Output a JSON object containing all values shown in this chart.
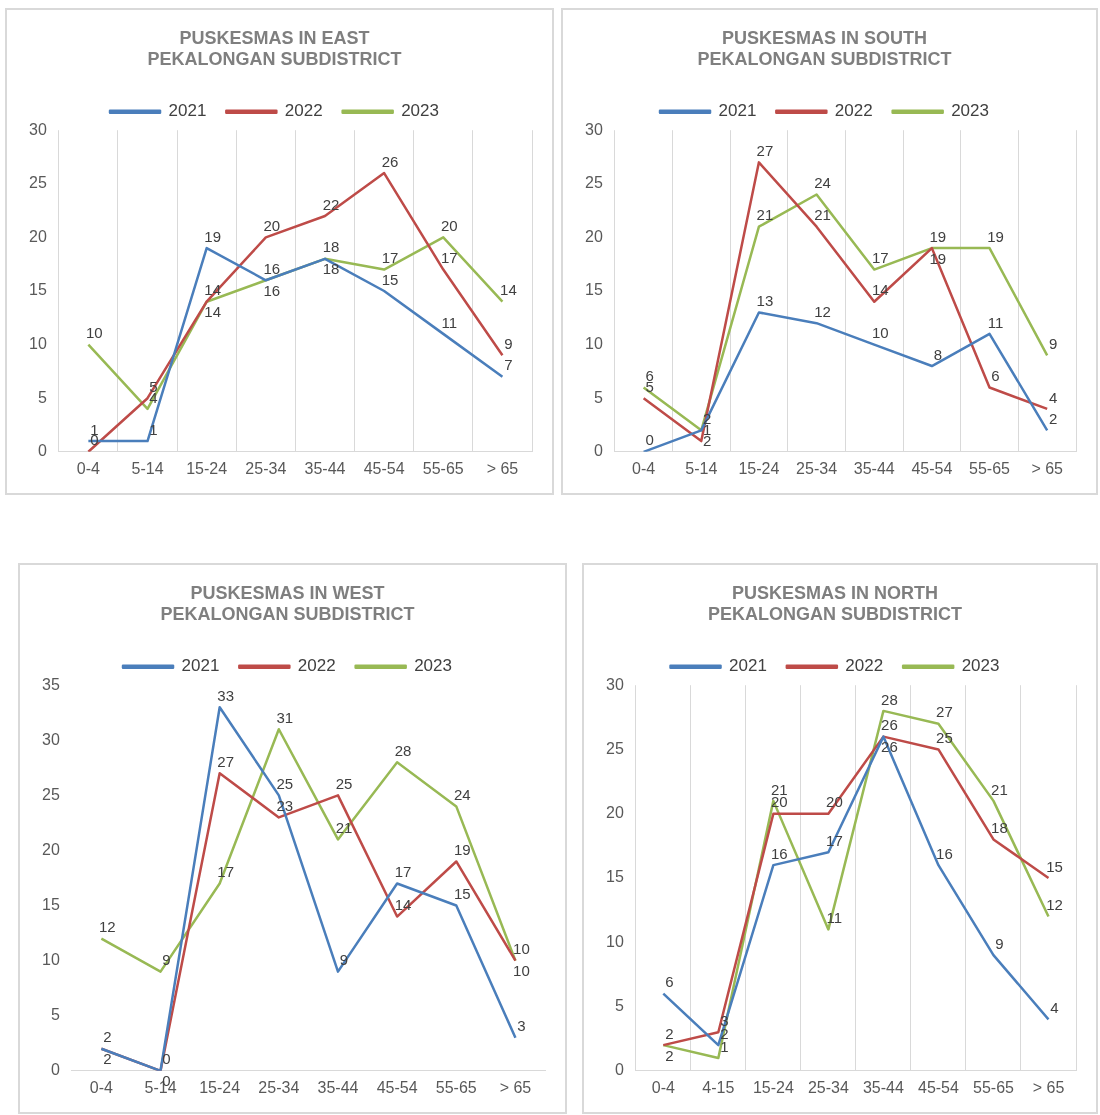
{
  "chart_data": [
    {
      "type": "line",
      "title": "PUSKESMAS IN EAST PEKALONGAN SUBDISTRICT",
      "categories": [
        "0-4",
        "5-14",
        "15-24",
        "25-34",
        "35-44",
        "45-54",
        "55-65",
        "> 65"
      ],
      "series": [
        {
          "name": "2021",
          "color": "#4a7ebb",
          "values": [
            1,
            1,
            19,
            16,
            18,
            15,
            11,
            7
          ]
        },
        {
          "name": "2022",
          "color": "#be4b48",
          "values": [
            0,
            5,
            14,
            20,
            22,
            26,
            17,
            9
          ]
        },
        {
          "name": "2023",
          "color": "#98b954",
          "values": [
            10,
            4,
            14,
            16,
            18,
            17,
            20,
            14
          ]
        }
      ],
      "ylim": [
        0,
        30
      ],
      "yticks": [
        0,
        5,
        10,
        15,
        20,
        25,
        30
      ],
      "grid": "x",
      "legend": "top",
      "data_labels": true,
      "marker": "none"
    },
    {
      "type": "line",
      "title": "PUSKESMAS IN SOUTH PEKALONGAN SUBDISTRICT",
      "categories": [
        "0-4",
        "5-14",
        "15-24",
        "25-34",
        "35-44",
        "45-54",
        "55-65",
        "> 65"
      ],
      "series": [
        {
          "name": "2021",
          "color": "#4a7ebb",
          "values": [
            0,
            2,
            13,
            12,
            10,
            8,
            11,
            2
          ]
        },
        {
          "name": "2022",
          "color": "#be4b48",
          "values": [
            5,
            1,
            27,
            21,
            14,
            19,
            6,
            4
          ]
        },
        {
          "name": "2023",
          "color": "#98b954",
          "values": [
            6,
            2,
            21,
            24,
            17,
            19,
            19,
            9
          ]
        }
      ],
      "ylim": [
        0,
        30
      ],
      "yticks": [
        0,
        5,
        10,
        15,
        20,
        25,
        30
      ],
      "grid": "x",
      "legend": "top",
      "data_labels": true,
      "marker": "none"
    },
    {
      "type": "line",
      "title": "PUSKESMAS IN WEST PEKALONGAN SUBDISTRICT",
      "categories": [
        "0-4",
        "5-14",
        "15-24",
        "25-34",
        "35-44",
        "45-54",
        "55-65",
        "> 65"
      ],
      "series": [
        {
          "name": "2021",
          "color": "#4a7ebb",
          "values": [
            2,
            0,
            33,
            25,
            9,
            17,
            15,
            3
          ]
        },
        {
          "name": "2022",
          "color": "#be4b48",
          "values": [
            2,
            0,
            27,
            23,
            25,
            14,
            19,
            10
          ]
        },
        {
          "name": "2023",
          "color": "#98b954",
          "values": [
            12,
            9,
            17,
            31,
            21,
            28,
            24,
            10
          ]
        }
      ],
      "ylim": [
        0,
        35
      ],
      "yticks": [
        0,
        5,
        10,
        15,
        20,
        25,
        30,
        35
      ],
      "legend": "top",
      "data_labels": true,
      "marker": "none"
    },
    {
      "type": "line",
      "title": "PUSKESMAS IN NORTH PEKALONGAN SUBDISTRICT",
      "categories": [
        "0-4",
        "4-15",
        "15-24",
        "25-34",
        "35-44",
        "45-54",
        "55-65",
        "> 65"
      ],
      "series": [
        {
          "name": "2021",
          "color": "#4a7ebb",
          "values": [
            6,
            2,
            16,
            17,
            26,
            16,
            9,
            4
          ]
        },
        {
          "name": "2022",
          "color": "#be4b48",
          "values": [
            2,
            3,
            20,
            20,
            26,
            25,
            18,
            15
          ]
        },
        {
          "name": "2023",
          "color": "#98b954",
          "values": [
            2,
            1,
            21,
            11,
            28,
            27,
            21,
            12
          ]
        }
      ],
      "ylim": [
        0,
        30
      ],
      "yticks": [
        0,
        5,
        10,
        15,
        20,
        25,
        30
      ],
      "grid": "x",
      "legend": "top",
      "data_labels": true,
      "marker": "none"
    }
  ]
}
